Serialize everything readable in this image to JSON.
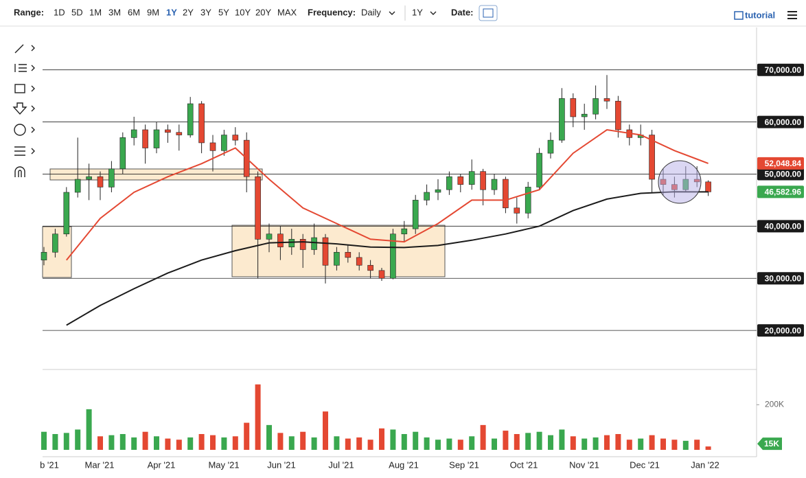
{
  "toolbar": {
    "range_label": "Range:",
    "ranges": [
      "1D",
      "5D",
      "1M",
      "3M",
      "6M",
      "9M",
      "1Y",
      "2Y",
      "3Y",
      "5Y",
      "10Y",
      "20Y",
      "MAX"
    ],
    "active_range": "1Y",
    "frequency_label": "Frequency:",
    "frequency": "Daily",
    "period": "1Y",
    "date_label": "Date:",
    "tutorial": "tutorial"
  },
  "chart_data": {
    "type": "candlestick",
    "up_color": "#3aa84f",
    "down_color": "#e44832",
    "ylim": [
      12500,
      78000
    ],
    "yticks": [
      {
        "value": 20000,
        "label": "20,000.00"
      },
      {
        "value": 30000,
        "label": "30,000.00"
      },
      {
        "value": 40000,
        "label": "40,000.00"
      },
      {
        "value": 50000,
        "label": "50,000.00"
      },
      {
        "value": 60000,
        "label": "60,000.00"
      },
      {
        "value": 70000,
        "label": "70,000.00"
      }
    ],
    "xticks": [
      "b '21",
      "Mar '21",
      "Apr '21",
      "May '21",
      "Jun '21",
      "Jul '21",
      "Aug '21",
      "Sep '21",
      "Oct '21",
      "Nov '21",
      "Dec '21",
      "Jan '22"
    ],
    "candles": [
      [
        33500,
        36000,
        32500,
        35000
      ],
      [
        35000,
        39500,
        34000,
        38500
      ],
      [
        38500,
        47500,
        38000,
        46500
      ],
      [
        46500,
        57000,
        45500,
        49000
      ],
      [
        49000,
        52000,
        45000,
        49500
      ],
      [
        49500,
        50500,
        45000,
        47500
      ],
      [
        47500,
        52500,
        46500,
        51000
      ],
      [
        51000,
        58000,
        50000,
        57000
      ],
      [
        57000,
        61000,
        55500,
        58500
      ],
      [
        58500,
        59500,
        52000,
        55000
      ],
      [
        55000,
        60000,
        54000,
        58500
      ],
      [
        58500,
        59500,
        56000,
        58000
      ],
      [
        58000,
        59500,
        54500,
        57500
      ],
      [
        57500,
        64800,
        57000,
        63500
      ],
      [
        63500,
        64000,
        54000,
        56000
      ],
      [
        56000,
        57500,
        50500,
        54500
      ],
      [
        54500,
        58500,
        53500,
        57500
      ],
      [
        57500,
        59000,
        55500,
        56500
      ],
      [
        56500,
        58000,
        46500,
        49500
      ],
      [
        49500,
        50500,
        30000,
        37500
      ],
      [
        37500,
        40500,
        35000,
        38500
      ],
      [
        38500,
        40000,
        33500,
        36000
      ],
      [
        36000,
        39500,
        34500,
        37500
      ],
      [
        37500,
        38500,
        32000,
        35500
      ],
      [
        35500,
        40500,
        34500,
        37800
      ],
      [
        37800,
        38500,
        29000,
        32500
      ],
      [
        32500,
        36000,
        31500,
        35000
      ],
      [
        35000,
        36500,
        33000,
        34000
      ],
      [
        34000,
        35000,
        31500,
        32500
      ],
      [
        32500,
        33500,
        30000,
        31500
      ],
      [
        31500,
        32000,
        29500,
        30000
      ],
      [
        30000,
        39500,
        29800,
        38500
      ],
      [
        38500,
        41000,
        37000,
        39500
      ],
      [
        39500,
        46000,
        38500,
        45000
      ],
      [
        45000,
        48000,
        44000,
        46500
      ],
      [
        46500,
        49000,
        45000,
        47000
      ],
      [
        47000,
        50500,
        46000,
        49500
      ],
      [
        49500,
        50000,
        46500,
        48000
      ],
      [
        48000,
        52800,
        47000,
        50500
      ],
      [
        50500,
        51000,
        44000,
        47000
      ],
      [
        47000,
        50000,
        46000,
        49000
      ],
      [
        49000,
        49500,
        42500,
        43500
      ],
      [
        43500,
        45500,
        40500,
        42500
      ],
      [
        42500,
        48500,
        41500,
        47500
      ],
      [
        47500,
        55000,
        47000,
        54000
      ],
      [
        54000,
        58000,
        53000,
        56500
      ],
      [
        56500,
        66500,
        56000,
        64500
      ],
      [
        64500,
        65500,
        59000,
        61000
      ],
      [
        61000,
        63500,
        58500,
        61500
      ],
      [
        61500,
        67000,
        60500,
        64500
      ],
      [
        64500,
        69000,
        62500,
        64000
      ],
      [
        64000,
        65000,
        57000,
        58500
      ],
      [
        58500,
        59500,
        55500,
        57000
      ],
      [
        57000,
        59500,
        55500,
        57500
      ],
      [
        57500,
        58500,
        46500,
        49000
      ],
      [
        49000,
        51000,
        46000,
        48000
      ],
      [
        48000,
        49500,
        45500,
        47000
      ],
      [
        47000,
        51500,
        46500,
        49000
      ],
      [
        49000,
        51500,
        47500,
        48500
      ],
      [
        48500,
        48800,
        45800,
        46583
      ]
    ],
    "ma_series": [
      {
        "color": "#e44832",
        "values": [
          33500,
          41500,
          46500,
          49500,
          52000,
          55000,
          49000,
          43500,
          40500,
          37500,
          37000,
          40500,
          45000,
          45000,
          47000,
          54000,
          58500,
          57500,
          54500,
          52049
        ]
      },
      {
        "color": "#1a1a1a",
        "values": [
          21000,
          24800,
          28000,
          31000,
          33500,
          35300,
          36800,
          37000,
          36600,
          36000,
          35900,
          36300,
          37300,
          38500,
          40000,
          43000,
          45200,
          46300,
          46600,
          46583
        ]
      }
    ],
    "price_labels": [
      {
        "value": 52048.84,
        "label": "52,048.84",
        "color": "#e44832"
      },
      {
        "value": 46582.96,
        "label": "46,582.96",
        "color": "#3aa84f"
      }
    ],
    "volume": {
      "ylim": [
        0,
        350000
      ],
      "yticks": [
        {
          "value": 200000,
          "label": "200K"
        }
      ],
      "values": [
        80000,
        70000,
        75000,
        90000,
        180000,
        60000,
        65000,
        70000,
        55000,
        80000,
        60000,
        50000,
        45000,
        55000,
        70000,
        65000,
        55000,
        60000,
        120000,
        290000,
        110000,
        75000,
        60000,
        80000,
        55000,
        170000,
        60000,
        50000,
        55000,
        45000,
        95000,
        90000,
        70000,
        80000,
        55000,
        45000,
        50000,
        45000,
        60000,
        110000,
        50000,
        85000,
        70000,
        75000,
        80000,
        65000,
        90000,
        60000,
        50000,
        55000,
        65000,
        70000,
        45000,
        50000,
        65000,
        50000,
        45000,
        40000,
        45000,
        15000
      ],
      "last_label": {
        "value": 15000,
        "label": "15K"
      }
    }
  }
}
